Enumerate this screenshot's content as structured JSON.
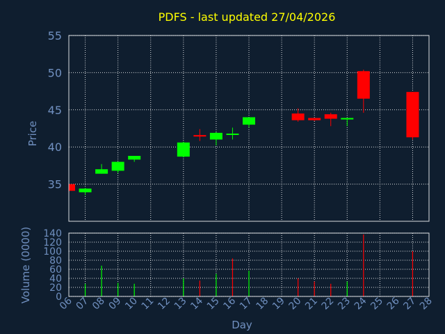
{
  "chart_data": [
    {
      "type": "candlestick",
      "title": "PDFS - last updated 27/04/2026",
      "ylabel": "Price",
      "ylim": [
        30,
        55
      ],
      "yticks": [
        35,
        40,
        45,
        50,
        55
      ],
      "grid": true,
      "up_color": "#00ff00",
      "down_color": "#ff0000",
      "candles": [
        {
          "day": "06",
          "open": 35.0,
          "high": 35.0,
          "low": 33.9,
          "close": 34.1
        },
        {
          "day": "07",
          "open": 33.9,
          "high": 34.5,
          "low": 33.5,
          "close": 34.4
        },
        {
          "day": "08",
          "open": 36.4,
          "high": 37.7,
          "low": 36.4,
          "close": 37.0
        },
        {
          "day": "09",
          "open": 36.8,
          "high": 38.0,
          "low": 36.5,
          "close": 38.0
        },
        {
          "day": "10",
          "open": 38.3,
          "high": 38.8,
          "low": 38.0,
          "close": 38.8
        },
        {
          "day": "13",
          "open": 38.7,
          "high": 40.7,
          "low": 38.6,
          "close": 40.6
        },
        {
          "day": "14",
          "open": 41.6,
          "high": 42.4,
          "low": 40.8,
          "close": 41.4
        },
        {
          "day": "15",
          "open": 41.0,
          "high": 42.0,
          "low": 40.2,
          "close": 41.9
        },
        {
          "day": "16",
          "open": 41.8,
          "high": 42.6,
          "low": 41.0,
          "close": 41.8
        },
        {
          "day": "17",
          "open": 43.0,
          "high": 44.0,
          "low": 42.6,
          "close": 44.0
        },
        {
          "day": "20",
          "open": 44.5,
          "high": 45.2,
          "low": 43.4,
          "close": 43.6
        },
        {
          "day": "21",
          "open": 43.9,
          "high": 43.9,
          "low": 43.5,
          "close": 43.6
        },
        {
          "day": "22",
          "open": 44.4,
          "high": 44.6,
          "low": 42.8,
          "close": 43.8
        },
        {
          "day": "23",
          "open": 43.7,
          "high": 43.9,
          "low": 42.8,
          "close": 43.9
        },
        {
          "day": "24",
          "open": 50.2,
          "high": 50.4,
          "low": 44.6,
          "close": 46.5
        },
        {
          "day": "27",
          "open": 47.4,
          "high": 47.4,
          "low": 41.0,
          "close": 41.3
        }
      ]
    },
    {
      "type": "bar",
      "ylabel": "Volume (0000)",
      "xlabel": "Day",
      "ylim": [
        0,
        140
      ],
      "yticks": [
        0,
        20,
        40,
        60,
        80,
        100,
        120,
        140
      ],
      "x_tick_labels": [
        "06",
        "07",
        "08",
        "09",
        "10",
        "11",
        "12",
        "13",
        "14",
        "15",
        "16",
        "17",
        "18",
        "19",
        "20",
        "21",
        "22",
        "23",
        "24",
        "25",
        "26",
        "27",
        "28"
      ],
      "volumes": [
        {
          "day": "07",
          "value": 28,
          "dir": "up"
        },
        {
          "day": "08",
          "value": 68,
          "dir": "up"
        },
        {
          "day": "09",
          "value": 30,
          "dir": "up"
        },
        {
          "day": "10",
          "value": 28,
          "dir": "up"
        },
        {
          "day": "13",
          "value": 40,
          "dir": "up"
        },
        {
          "day": "14",
          "value": 35,
          "dir": "down"
        },
        {
          "day": "15",
          "value": 50,
          "dir": "up"
        },
        {
          "day": "16",
          "value": 84,
          "dir": "down"
        },
        {
          "day": "17",
          "value": 57,
          "dir": "up"
        },
        {
          "day": "20",
          "value": 40,
          "dir": "down"
        },
        {
          "day": "21",
          "value": 33,
          "dir": "down"
        },
        {
          "day": "22",
          "value": 28,
          "dir": "down"
        },
        {
          "day": "23",
          "value": 33,
          "dir": "up"
        },
        {
          "day": "24",
          "value": 137,
          "dir": "down"
        },
        {
          "day": "27",
          "value": 100,
          "dir": "down"
        }
      ]
    }
  ]
}
